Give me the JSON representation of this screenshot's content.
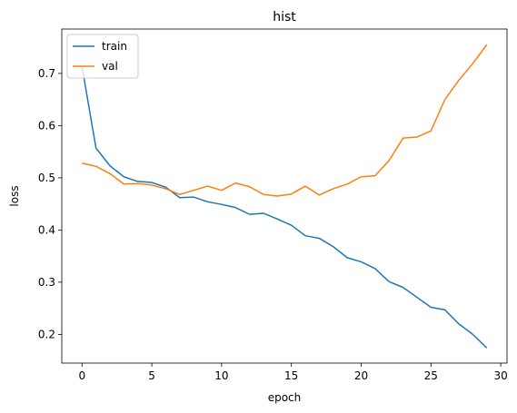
{
  "chart_data": {
    "type": "line",
    "title": "hist",
    "xlabel": "epoch",
    "ylabel": "loss",
    "xlim": [
      -1.45,
      30.45
    ],
    "ylim": [
      0.145,
      0.785
    ],
    "xticks": [
      0,
      5,
      10,
      15,
      20,
      25,
      30
    ],
    "xtick_labels": [
      "0",
      "5",
      "10",
      "15",
      "20",
      "25",
      "30"
    ],
    "yticks": [
      0.2,
      0.3,
      0.4,
      0.5,
      0.6,
      0.7
    ],
    "ytick_labels": [
      "0.2",
      "0.3",
      "0.4",
      "0.5",
      "0.6",
      "0.7"
    ],
    "grid": false,
    "legend": "upper-left",
    "x": [
      0,
      1,
      2,
      3,
      4,
      5,
      6,
      7,
      8,
      9,
      10,
      11,
      12,
      13,
      14,
      15,
      16,
      17,
      18,
      19,
      20,
      21,
      22,
      23,
      24,
      25,
      26,
      27,
      28,
      29
    ],
    "series": [
      {
        "name": "train",
        "color": "#1f77b4",
        "values": [
          0.713,
          0.557,
          0.523,
          0.502,
          0.493,
          0.491,
          0.482,
          0.462,
          0.463,
          0.454,
          0.449,
          0.443,
          0.43,
          0.432,
          0.421,
          0.409,
          0.389,
          0.384,
          0.368,
          0.347,
          0.339,
          0.326,
          0.301,
          0.29,
          0.271,
          0.252,
          0.247,
          0.22,
          0.2,
          0.174
        ]
      },
      {
        "name": "val",
        "color": "#ff7f0e",
        "values": [
          0.528,
          0.522,
          0.508,
          0.488,
          0.489,
          0.486,
          0.479,
          0.468,
          0.476,
          0.484,
          0.476,
          0.49,
          0.483,
          0.468,
          0.465,
          0.469,
          0.484,
          0.467,
          0.479,
          0.488,
          0.502,
          0.504,
          0.533,
          0.576,
          0.578,
          0.59,
          0.65,
          0.687,
          0.719,
          0.755
        ]
      }
    ]
  }
}
